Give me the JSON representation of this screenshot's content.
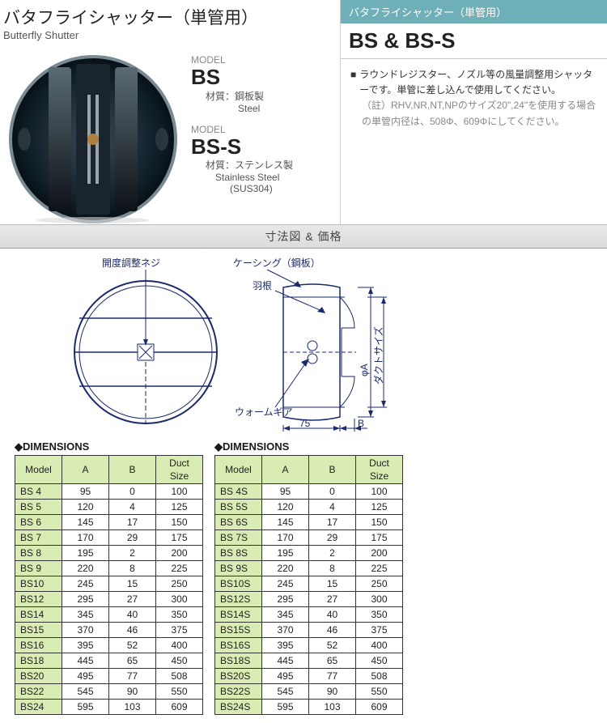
{
  "header": {
    "title_jp": "バタフライシャッター（単管用）",
    "title_en": "Butterfly Shutter"
  },
  "models": {
    "label": "MODEL",
    "bs": {
      "name": "BS",
      "material_jp": "材質：鋼板製",
      "material_en": "Steel"
    },
    "bss": {
      "name": "BS-S",
      "material_jp": "材質：ステンレス製",
      "material_en": "Stainless Steel",
      "material_code": "(SUS304)"
    }
  },
  "right": {
    "header": "バタフライシャッター（単管用）",
    "title": "BS & BS-S",
    "desc": "ラウンドレジスター、ノズル等の風量調整用シャッターです。単管に差し込んで使用してください。",
    "note_label": "（註）",
    "note": "RHV,NR,NT,NPのサイズ20\",24\"を使用する場合の単管内径は、508Φ、609Φにしてください。"
  },
  "section_bar": "寸法図 & 価格",
  "diagram": {
    "label_screw": "開度調整ネジ",
    "label_casing": "ケーシング（鋼板）",
    "label_vane": "羽根",
    "label_worm": "ウォームギア",
    "dim_75": "75",
    "dim_B": "B",
    "dim_phiA": "φA",
    "dim_duct": "ダクトサイズ",
    "label_color": "#1a2a6c"
  },
  "dimensions": {
    "title": "◆DIMENSIONS",
    "columns": [
      "Model",
      "A",
      "B",
      "Duct Size"
    ],
    "left_rows": [
      [
        "BS 4",
        "95",
        "0",
        "100"
      ],
      [
        "BS 5",
        "120",
        "4",
        "125"
      ],
      [
        "BS 6",
        "145",
        "17",
        "150"
      ],
      [
        "BS 7",
        "170",
        "29",
        "175"
      ],
      [
        "BS 8",
        "195",
        "2",
        "200"
      ],
      [
        "BS 9",
        "220",
        "8",
        "225"
      ],
      [
        "BS10",
        "245",
        "15",
        "250"
      ],
      [
        "BS12",
        "295",
        "27",
        "300"
      ],
      [
        "BS14",
        "345",
        "40",
        "350"
      ],
      [
        "BS15",
        "370",
        "46",
        "375"
      ],
      [
        "BS16",
        "395",
        "52",
        "400"
      ],
      [
        "BS18",
        "445",
        "65",
        "450"
      ],
      [
        "BS20",
        "495",
        "77",
        "508"
      ],
      [
        "BS22",
        "545",
        "90",
        "550"
      ],
      [
        "BS24",
        "595",
        "103",
        "609"
      ]
    ],
    "right_rows": [
      [
        "BS 4S",
        "95",
        "0",
        "100"
      ],
      [
        "BS 5S",
        "120",
        "4",
        "125"
      ],
      [
        "BS 6S",
        "145",
        "17",
        "150"
      ],
      [
        "BS 7S",
        "170",
        "29",
        "175"
      ],
      [
        "BS 8S",
        "195",
        "2",
        "200"
      ],
      [
        "BS 9S",
        "220",
        "8",
        "225"
      ],
      [
        "BS10S",
        "245",
        "15",
        "250"
      ],
      [
        "BS12S",
        "295",
        "27",
        "300"
      ],
      [
        "BS14S",
        "345",
        "40",
        "350"
      ],
      [
        "BS15S",
        "370",
        "46",
        "375"
      ],
      [
        "BS16S",
        "395",
        "52",
        "400"
      ],
      [
        "BS18S",
        "445",
        "65",
        "450"
      ],
      [
        "BS20S",
        "495",
        "77",
        "508"
      ],
      [
        "BS22S",
        "545",
        "90",
        "550"
      ],
      [
        "BS24S",
        "595",
        "103",
        "609"
      ]
    ],
    "header_bg": "#d9ecb4",
    "border_color": "#333333"
  }
}
